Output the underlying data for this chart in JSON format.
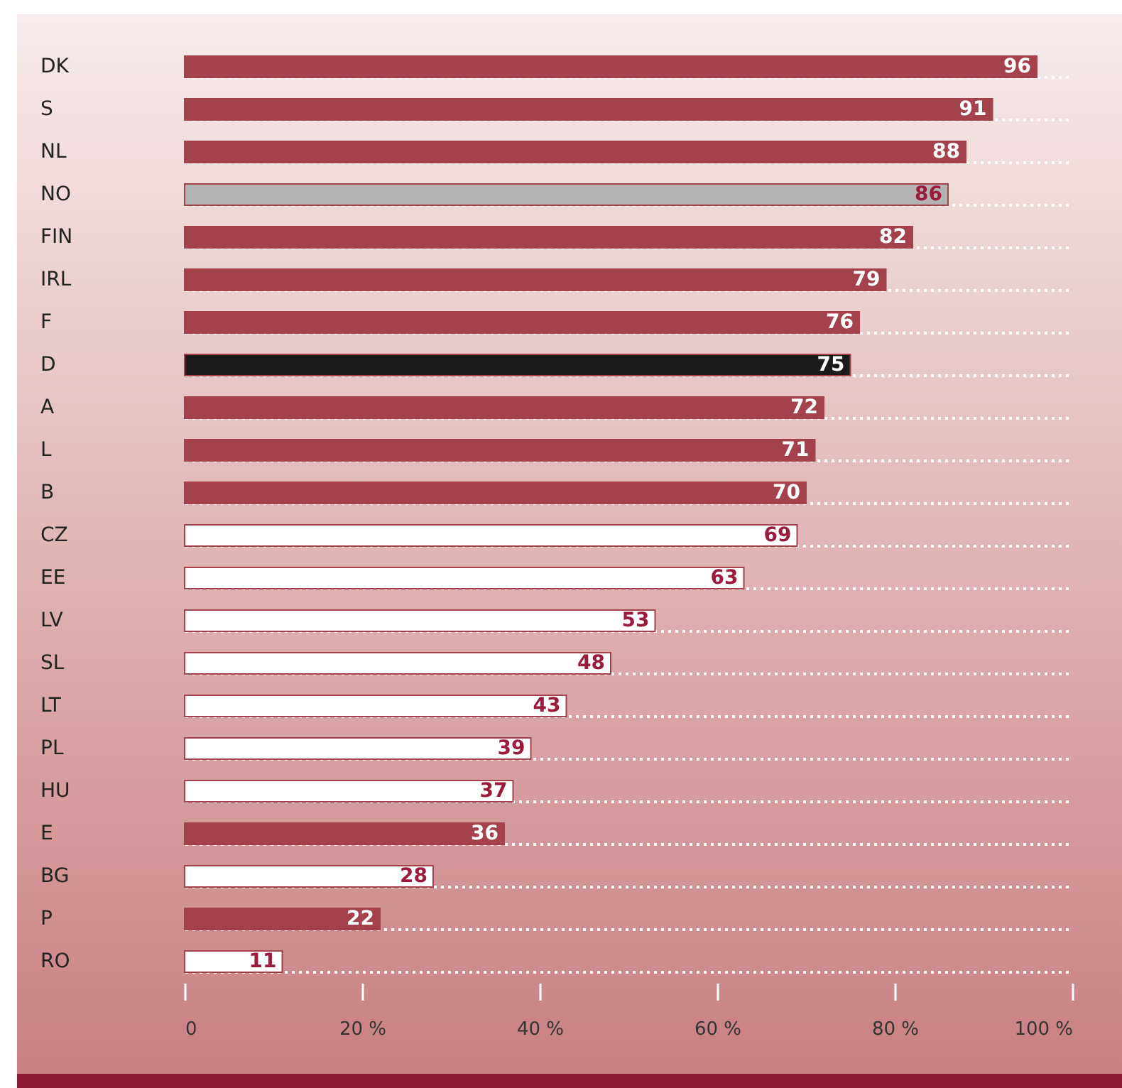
{
  "chart_data": {
    "type": "bar",
    "orientation": "horizontal",
    "categories": [
      "DK",
      "S",
      "NL",
      "NO",
      "FIN",
      "IRL",
      "F",
      "D",
      "A",
      "L",
      "B",
      "CZ",
      "EE",
      "LV",
      "SL",
      "LT",
      "PL",
      "HU",
      "E",
      "BG",
      "P",
      "RO"
    ],
    "values": [
      96,
      91,
      88,
      86,
      82,
      79,
      76,
      75,
      72,
      71,
      70,
      69,
      63,
      53,
      48,
      43,
      39,
      37,
      36,
      28,
      22,
      11
    ],
    "colors": [
      "#a3424a",
      "#a3424a",
      "#a3424a",
      "#b3b3b3",
      "#a3424a",
      "#a3424a",
      "#a3424a",
      "#1a1a1a",
      "#a3424a",
      "#a3424a",
      "#a3424a",
      "#ffffff",
      "#ffffff",
      "#ffffff",
      "#ffffff",
      "#ffffff",
      "#ffffff",
      "#ffffff",
      "#a3424a",
      "#ffffff",
      "#a3424a",
      "#ffffff"
    ],
    "xlim": [
      0,
      100
    ],
    "xticks": [
      0,
      {
        "value": 20,
        "label": "20 %"
      },
      {
        "value": 40,
        "label": "40 %"
      },
      {
        "value": 60,
        "label": "60 %"
      },
      {
        "value": 80,
        "label": "80 %"
      },
      {
        "value": 100,
        "label": "100 %"
      }
    ],
    "data_labels": true,
    "grid": "y"
  }
}
